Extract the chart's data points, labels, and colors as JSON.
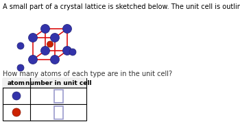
{
  "bg_color": "#ffffff",
  "title_text": "A small part of a crystal lattice is sketched below. The unit cell is outlined in red.",
  "question_text": "How many atoms of each type are in the unit cell?",
  "cube_color": "#dd1111",
  "blue_atom_color": "#3333aa",
  "red_atom_color": "#cc2200",
  "input_box_color": "#9999cc",
  "font_size_title": 7.0,
  "font_size_question": 7.0,
  "font_size_table": 6.5
}
